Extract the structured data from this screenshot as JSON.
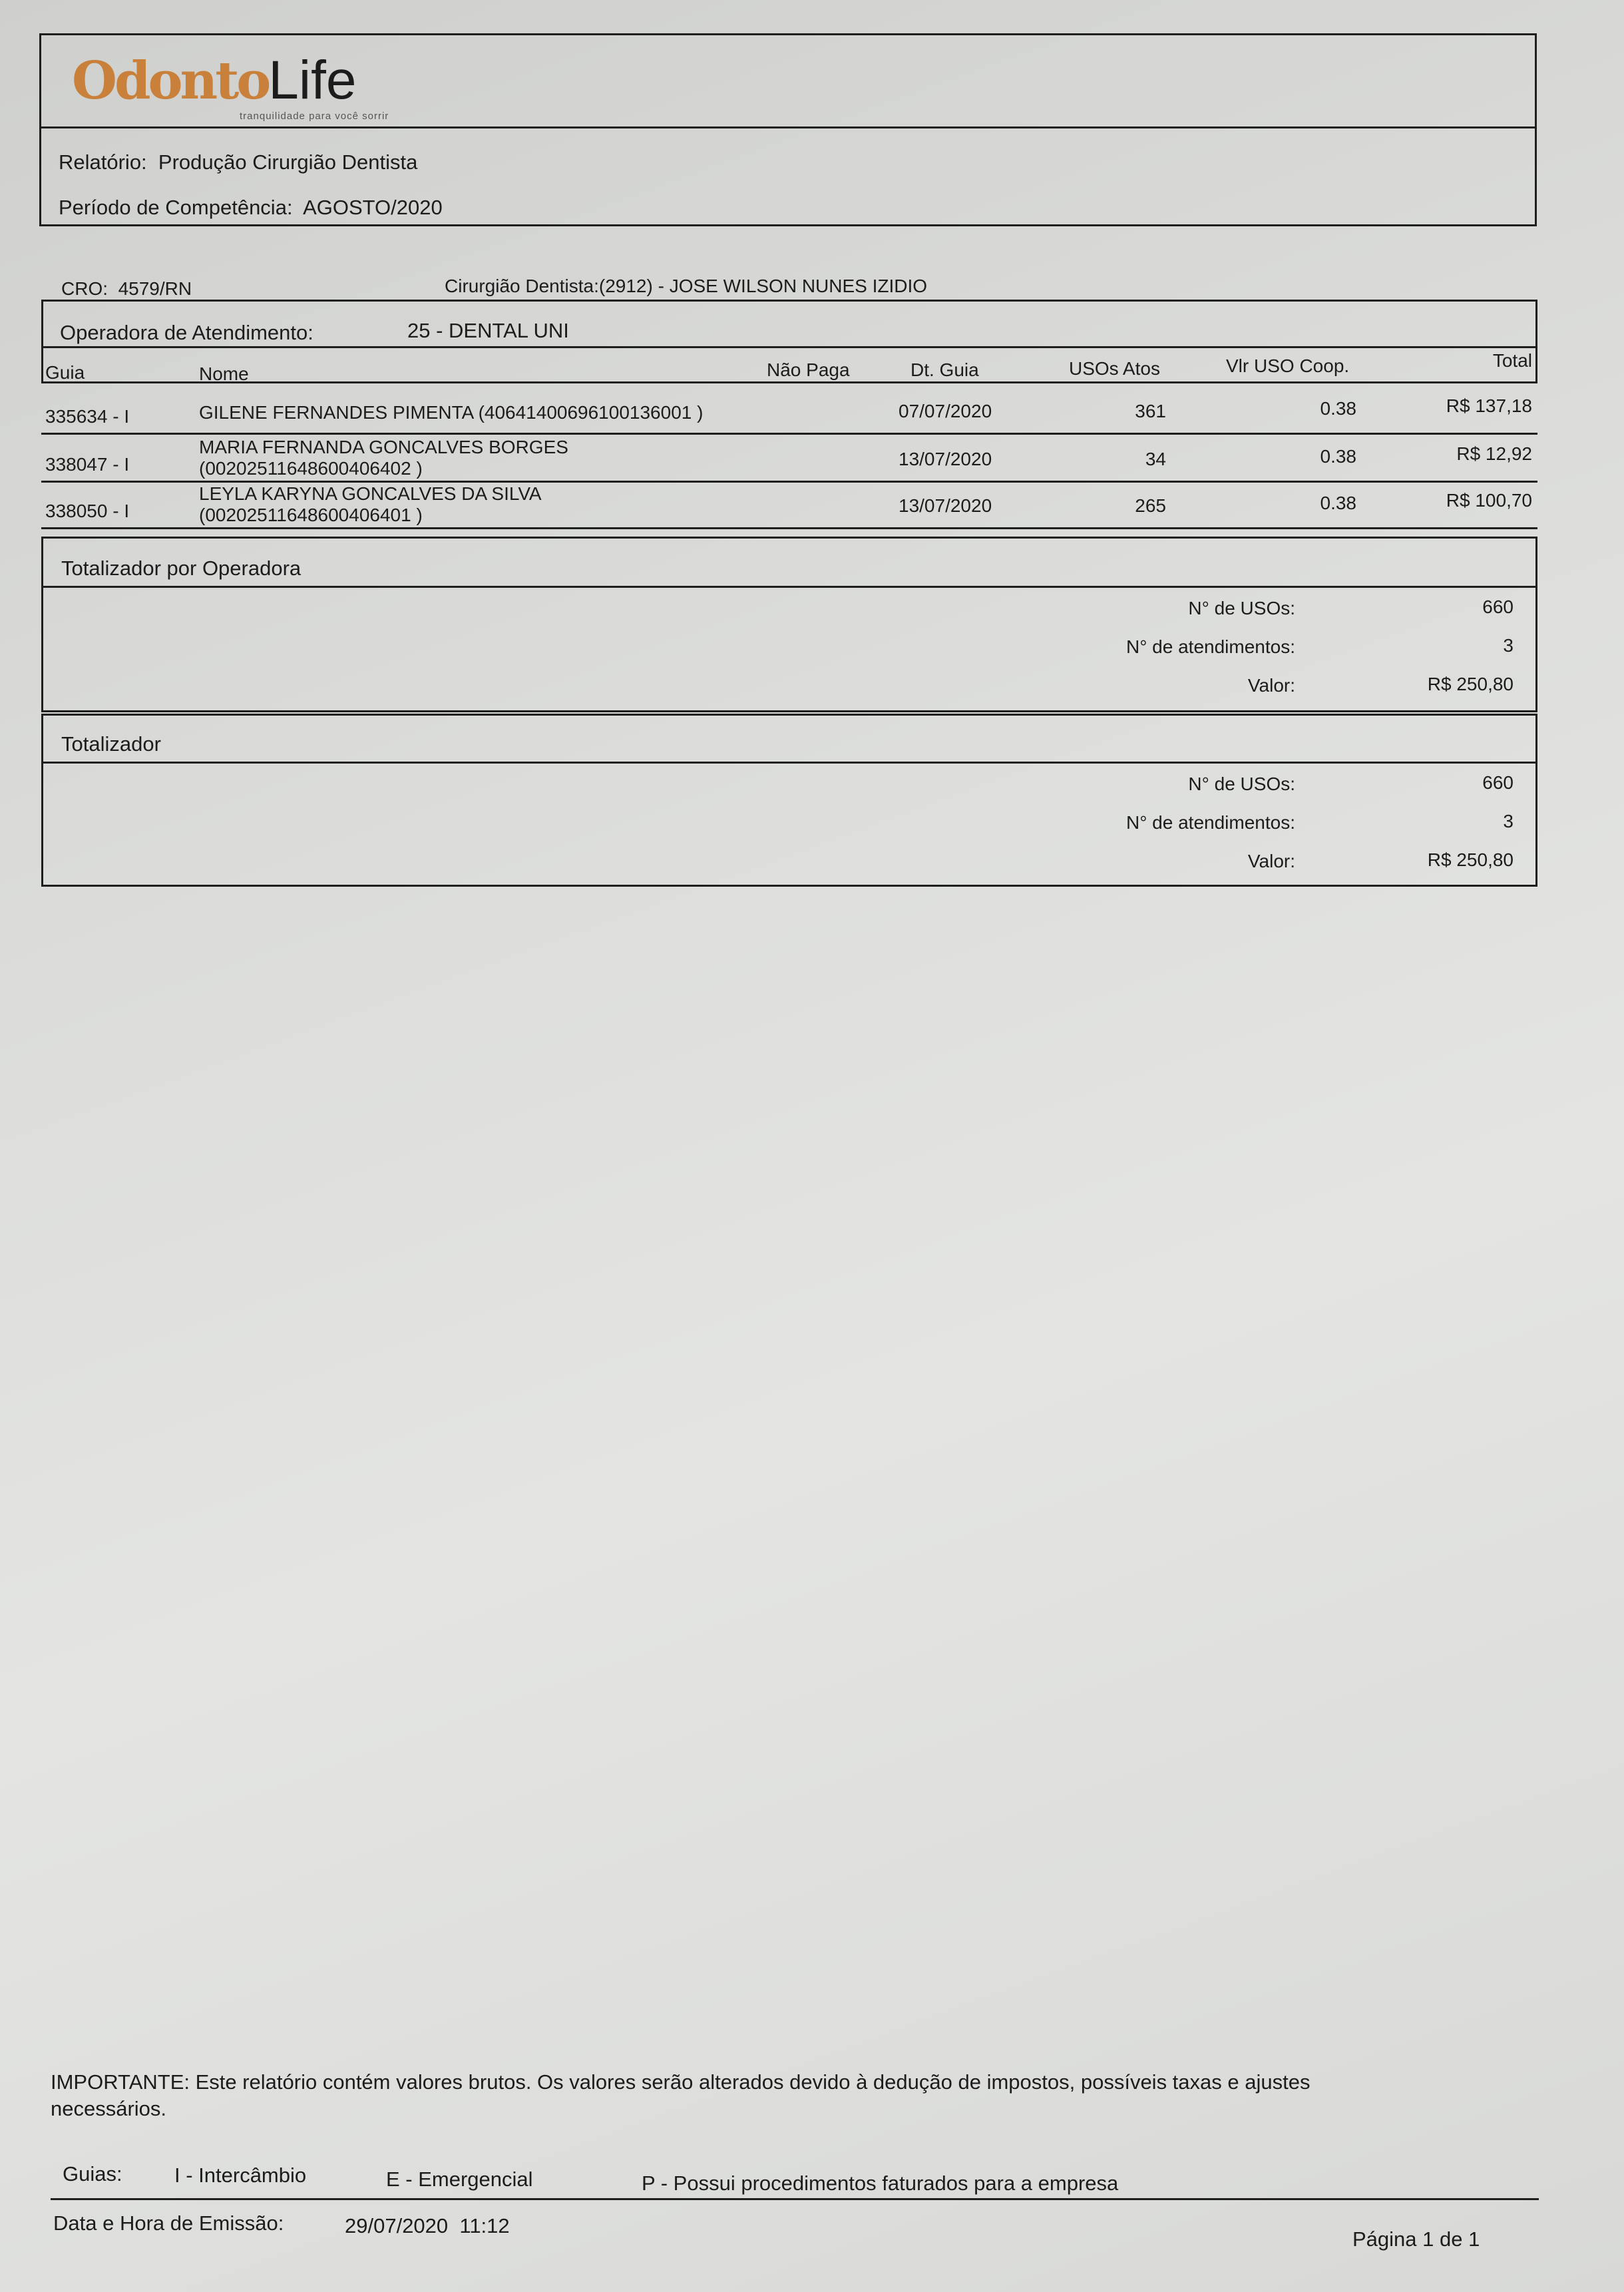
{
  "logo": {
    "brand_part1": "Odonto",
    "brand_part2": "Life",
    "tagline": "tranquilidade para você sorrir",
    "brand_color": "#c9803a"
  },
  "header": {
    "report_label": "Relatório:",
    "report_value": "Produção Cirurgião Dentista",
    "period_label": "Período de Competência:",
    "period_value": "AGOSTO/2020"
  },
  "info": {
    "cro_label": "CRO:",
    "cro_value": "4579/RN",
    "dentist_label": "Cirurgião Dentista:",
    "dentist_value": "(2912) - JOSE WILSON NUNES IZIDIO"
  },
  "operator": {
    "label": "Operadora de Atendimento:",
    "value": "25 - DENTAL UNI"
  },
  "table": {
    "columns": [
      "Guia",
      "Nome",
      "Não Paga",
      "Dt. Guia",
      "USOs Atos",
      "Vlr USO Coop.",
      "Total"
    ],
    "rows": [
      {
        "guia": "335634 - I",
        "nome": "GILENE FERNANDES PIMENTA (40641400696100136001 )",
        "nome2": "",
        "nao_paga": "",
        "dt_guia": "07/07/2020",
        "usos": "361",
        "vlr_uso": "0.38",
        "total": "R$ 137,18"
      },
      {
        "guia": "338047 - I",
        "nome": "MARIA FERNANDA GONCALVES BORGES",
        "nome2": "(00202511648600406402 )",
        "nao_paga": "",
        "dt_guia": "13/07/2020",
        "usos": "34",
        "vlr_uso": "0.38",
        "total": "R$ 12,92"
      },
      {
        "guia": "338050 - I",
        "nome": "LEYLA KARYNA GONCALVES DA SILVA",
        "nome2": "(00202511648600406401 )",
        "nao_paga": "",
        "dt_guia": "13/07/2020",
        "usos": "265",
        "vlr_uso": "0.38",
        "total": "R$ 100,70"
      }
    ]
  },
  "totals_operator": {
    "title": "Totalizador por Operadora",
    "usos_label": "N° de USOs:",
    "usos_value": "660",
    "atend_label": "N° de atendimentos:",
    "atend_value": "3",
    "valor_label": "Valor:",
    "valor_value": "R$ 250,80"
  },
  "totals": {
    "title": "Totalizador",
    "usos_label": "N° de USOs:",
    "usos_value": "660",
    "atend_label": "N° de atendimentos:",
    "atend_value": "3",
    "valor_label": "Valor:",
    "valor_value": "R$ 250,80"
  },
  "footer": {
    "important_line1": "IMPORTANTE: Este relatório contém valores brutos. Os valores serão alterados devido à dedução de impostos, possíveis taxas e ajustes",
    "important_line2": "necessários.",
    "guias_label": "Guias:",
    "legend_i": "I - Intercâmbio",
    "legend_e": "E - Emergencial",
    "legend_p": "P - Possui procedimentos faturados para a empresa",
    "emission_label": "Data e Hora de Emissão:",
    "emission_value": "29/07/2020  11:12",
    "page": "Página 1 de 1"
  }
}
